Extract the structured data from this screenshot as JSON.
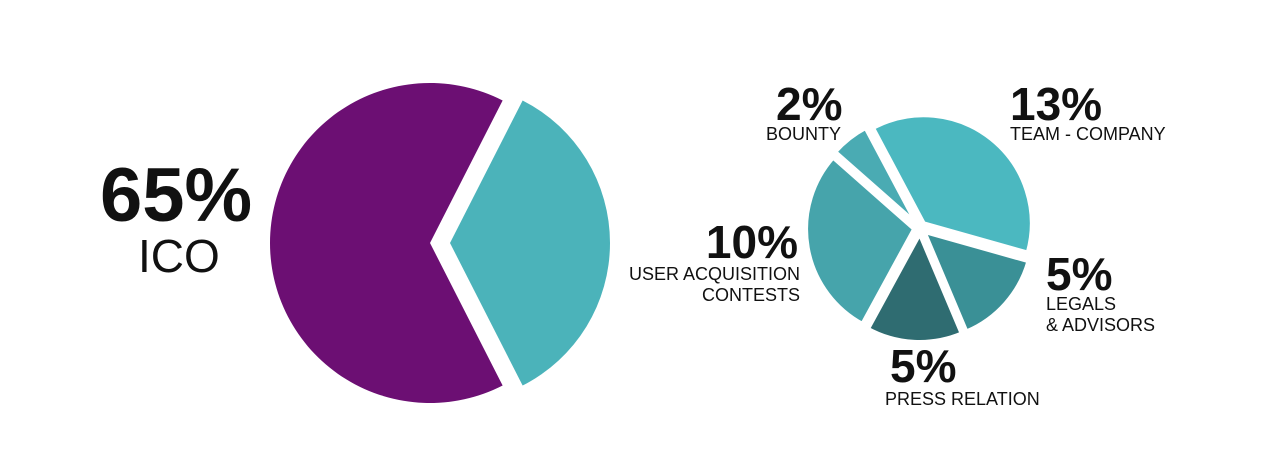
{
  "chart_data": [
    {
      "type": "pie",
      "categories": [
        "ICO",
        null
      ],
      "values": [
        65,
        35
      ],
      "value_labels": [
        "65%",
        null
      ],
      "colors": [
        "#6c0f73",
        "#4bb3ba"
      ]
    },
    {
      "type": "pie",
      "categories": [
        "TEAM - COMPANY",
        "LEGALS\n& ADVISORS",
        "PRESS RELATION",
        "USER ACQUISITION\nCONTESTS",
        "BOUNTY"
      ],
      "values": [
        13,
        5,
        5,
        10,
        2
      ],
      "value_labels": [
        "13%",
        "5%",
        "5%",
        "10%",
        "2%"
      ],
      "colors": [
        "#4bb8c0",
        "#3a9096",
        "#2f6c71",
        "#46a4ab",
        "#4aabb3"
      ]
    }
  ]
}
